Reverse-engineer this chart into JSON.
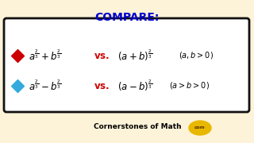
{
  "bg_color": "#fdf3d8",
  "title": "COMPARE:",
  "title_color": "#0000cc",
  "title_fontsize": 10,
  "box_bg": "white",
  "box_edge": "#111111",
  "vs_color": "#cc0000",
  "math_color": "black",
  "cond_color": "black",
  "diamond_red": "#cc0000",
  "diamond_blue": "#33aadd",
  "footer": "Cornerstones of Math",
  "footer_color": "black",
  "footer_fontsize": 6.5,
  "com_color": "#e8b800",
  "com_text_color": "#5a3000"
}
